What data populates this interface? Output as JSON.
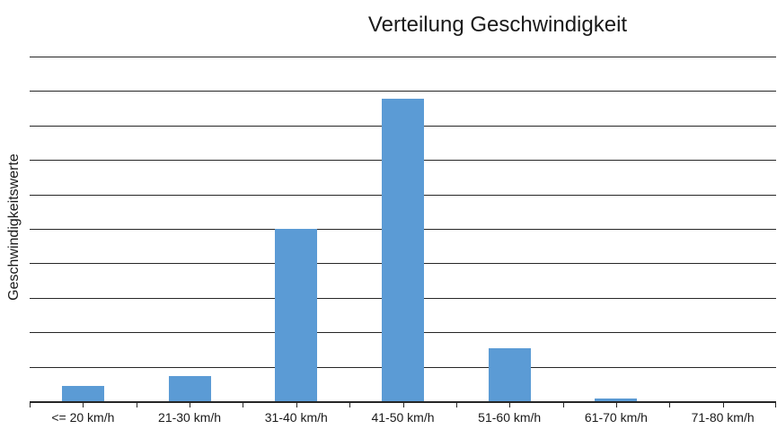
{
  "chart_data": {
    "type": "bar",
    "title": "Verteilung Geschwindigkeit",
    "xlabel": "",
    "ylabel": "Geschwindigkeitswerte",
    "categories": [
      "<= 20 km/h",
      "21-30 km/h",
      "31-40 km/h",
      "41-50 km/h",
      "51-60 km/h",
      "61-70 km/h",
      "71-80 km/h"
    ],
    "values": [
      0.44,
      0.73,
      5.0,
      8.77,
      1.53,
      0.09,
      0
    ],
    "value_scale_note": "y-axis has no numeric tick labels; values measured in gridline divisions",
    "ylim": [
      0,
      10
    ],
    "gridline_divisions": 10,
    "grid": true,
    "legend": false,
    "legend_position": "none",
    "bar_color": "#5B9BD5",
    "line_color": "#262626",
    "text_color": "#1a1a1a",
    "background_color": "#ffffff"
  }
}
